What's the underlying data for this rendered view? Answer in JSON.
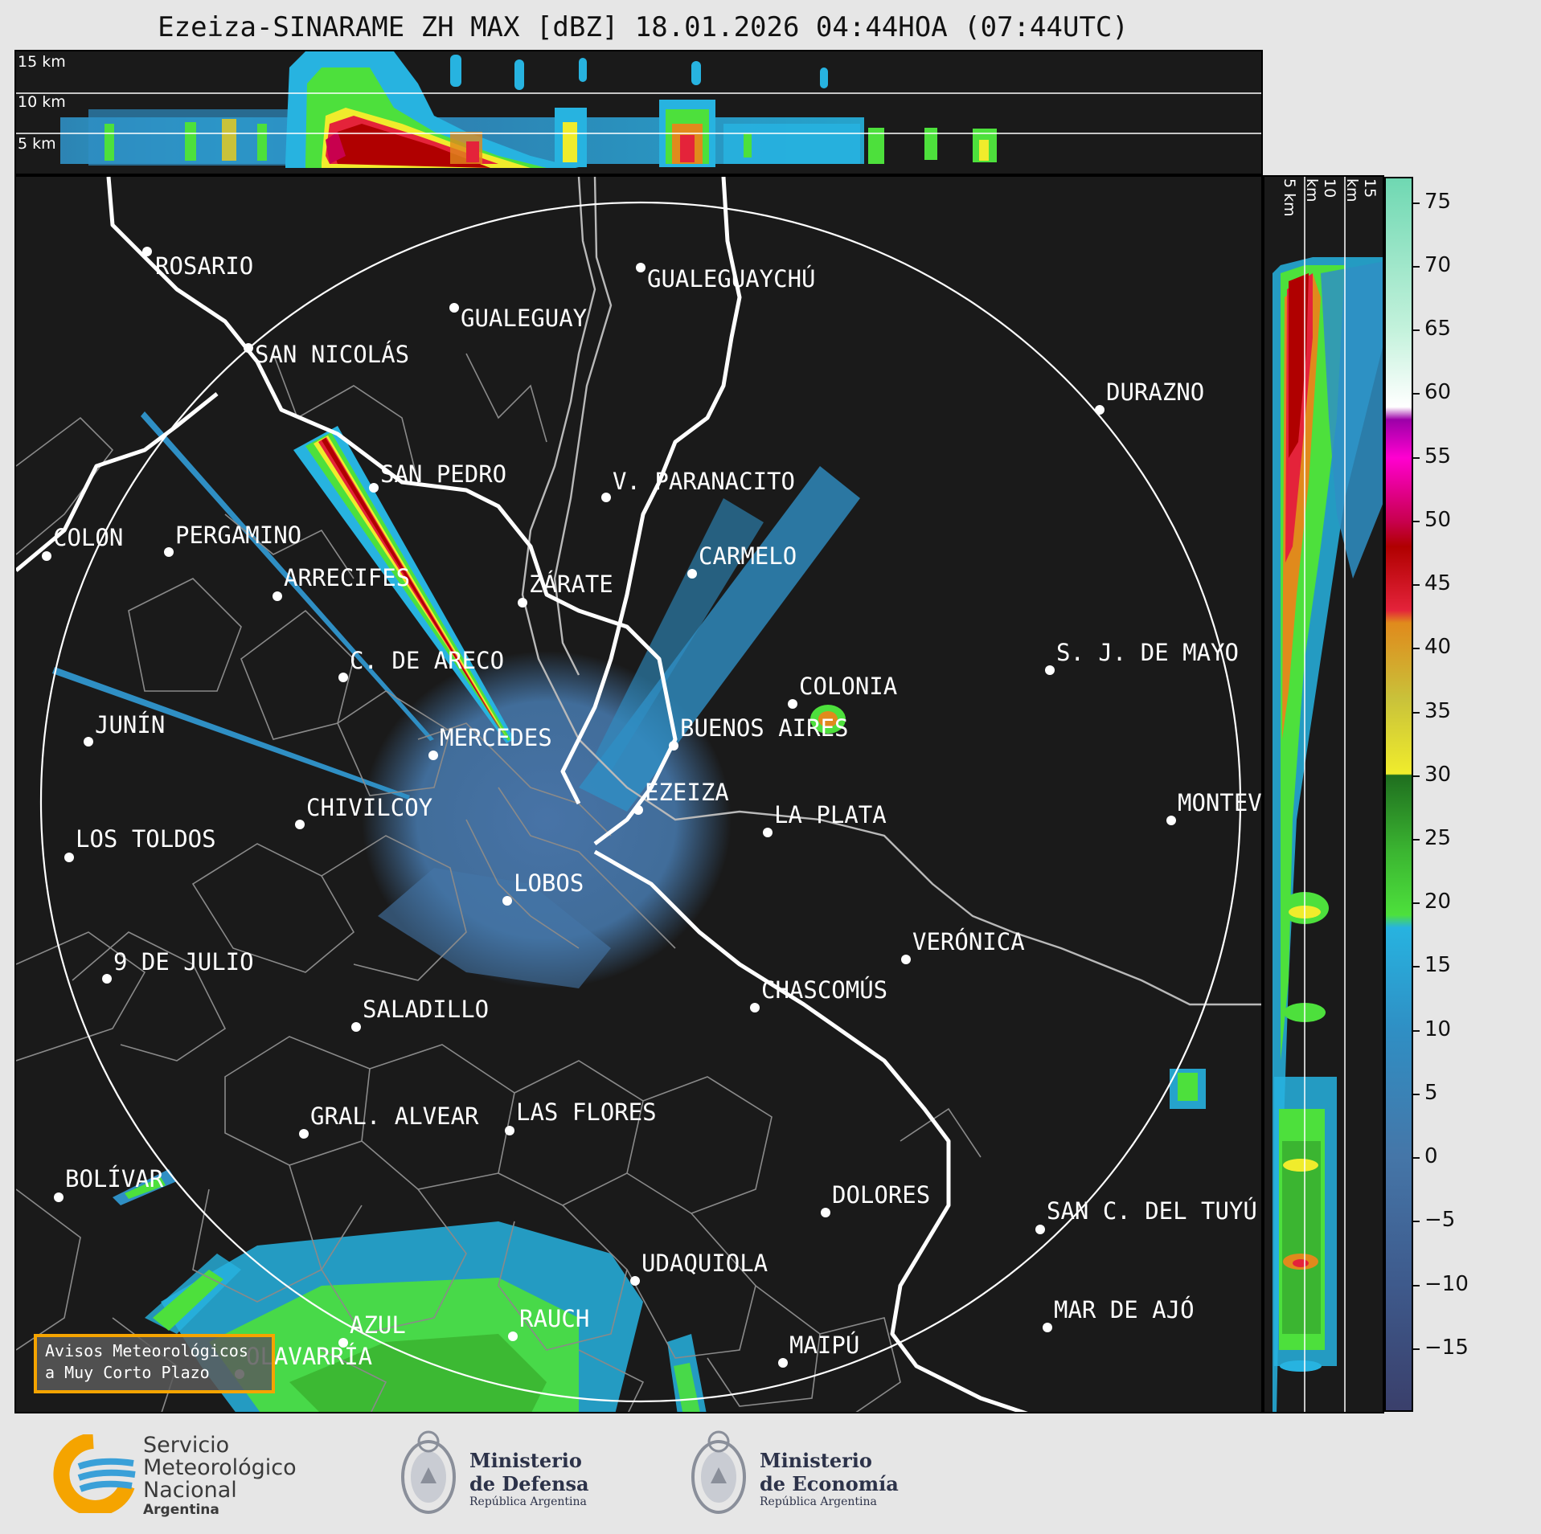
{
  "title": "Ezeiza-SINARAME ZH MAX [dBZ] 18.01.2026 04:44HOA (07:44UTC)",
  "top_axis": {
    "labels": [
      "15 km",
      "10 km",
      "5 km"
    ]
  },
  "side_axis": {
    "labels": [
      "5 km",
      "10 km",
      "15 km"
    ]
  },
  "colorbar": {
    "ticks": [
      "75",
      "70",
      "65",
      "60",
      "55",
      "50",
      "45",
      "40",
      "35",
      "30",
      "25",
      "20",
      "15",
      "10",
      "5",
      "0",
      "−5",
      "−10",
      "−15"
    ],
    "stops": [
      {
        "v": -20,
        "c": "#3a3f6b"
      },
      {
        "v": -10,
        "c": "#3e5a8c"
      },
      {
        "v": 0,
        "c": "#4576a8"
      },
      {
        "v": 10,
        "c": "#2f8fc4"
      },
      {
        "v": 18,
        "c": "#27b3e0"
      },
      {
        "v": 19,
        "c": "#4de03c"
      },
      {
        "v": 24,
        "c": "#3bb531"
      },
      {
        "v": 30,
        "c": "#1f6e1f"
      },
      {
        "v": 30.1,
        "c": "#f0ec2c"
      },
      {
        "v": 36,
        "c": "#c9c23a"
      },
      {
        "v": 42,
        "c": "#e08a1c"
      },
      {
        "v": 43,
        "c": "#e4233a"
      },
      {
        "v": 48,
        "c": "#b00000"
      },
      {
        "v": 50,
        "c": "#c8004e"
      },
      {
        "v": 55,
        "c": "#ff00d0"
      },
      {
        "v": 58,
        "c": "#9c00a8"
      },
      {
        "v": 59,
        "c": "#ffffff"
      },
      {
        "v": 65,
        "c": "#c4f2dc"
      },
      {
        "v": 77,
        "c": "#6fd8b2"
      }
    ]
  },
  "cities": [
    {
      "name": "ROSARIO"
    },
    {
      "name": "SAN NICOLÁS"
    },
    {
      "name": "GUALEGUAY"
    },
    {
      "name": "GUALEGUAYCHÚ"
    },
    {
      "name": "SAN PEDRO"
    },
    {
      "name": "V. PARANACITO"
    },
    {
      "name": "COLON"
    },
    {
      "name": "PERGAMINO"
    },
    {
      "name": "ARRECIFES"
    },
    {
      "name": "ZÁRATE"
    },
    {
      "name": "CARMELO"
    },
    {
      "name": "DURAZNO"
    },
    {
      "name": "C. DE ARECO"
    },
    {
      "name": "S. J. DE MAYO"
    },
    {
      "name": "COLONIA"
    },
    {
      "name": "JUNÍN"
    },
    {
      "name": "MERCEDES"
    },
    {
      "name": "BUENOS AIRES"
    },
    {
      "name": "EZEIZA"
    },
    {
      "name": "MONTEVIDEO"
    },
    {
      "name": "CHIVILCOY"
    },
    {
      "name": "LA PLATA"
    },
    {
      "name": "LOS TOLDOS"
    },
    {
      "name": "LOBOS"
    },
    {
      "name": "VERÓNICA"
    },
    {
      "name": "9 DE JULIO"
    },
    {
      "name": "CHASCOMÚS"
    },
    {
      "name": "SALADILLO"
    },
    {
      "name": "GRAL. ALVEAR"
    },
    {
      "name": "LAS FLORES"
    },
    {
      "name": "BOLÍVAR"
    },
    {
      "name": "DOLORES"
    },
    {
      "name": "SAN C. DEL TUYÚ"
    },
    {
      "name": "UDAQUIOLA"
    },
    {
      "name": "AZUL"
    },
    {
      "name": "RAUCH"
    },
    {
      "name": "MAR DE AJÓ"
    },
    {
      "name": "MAIPÚ"
    },
    {
      "name": "OLAVARRÍA"
    }
  ],
  "avisos": {
    "line1": "Avisos Meteorológicos",
    "line2": "a Muy Corto Plazo"
  },
  "logos": {
    "smn": {
      "line1": "Servicio",
      "line2": "Meteorológico",
      "line3": "Nacional",
      "line4": "Argentina"
    },
    "defensa": {
      "line1": "Ministerio",
      "line2": "de Defensa",
      "line3": "República Argentina"
    },
    "economia": {
      "line1": "Ministerio",
      "line2": "de Economía",
      "line3": "República Argentina"
    }
  }
}
